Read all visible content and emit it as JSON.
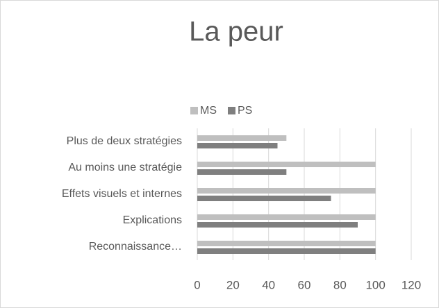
{
  "chart_data": {
    "type": "hbar",
    "title": "La peur",
    "categories": [
      "Plus de deux stratégies",
      "Au moins une stratégie",
      "Effets visuels et internes",
      "Explications",
      "Reconnaissance…"
    ],
    "series": [
      {
        "name": "MS",
        "color": "#bfbfbf",
        "values": [
          50,
          100,
          100,
          100,
          100
        ]
      },
      {
        "name": "PS",
        "color": "#7f7f7f",
        "values": [
          45,
          50,
          75,
          90,
          100
        ]
      }
    ],
    "xlim": [
      0,
      120
    ],
    "xticks": [
      0,
      20,
      40,
      60,
      80,
      100,
      120
    ],
    "grid": true,
    "legend": "top"
  }
}
